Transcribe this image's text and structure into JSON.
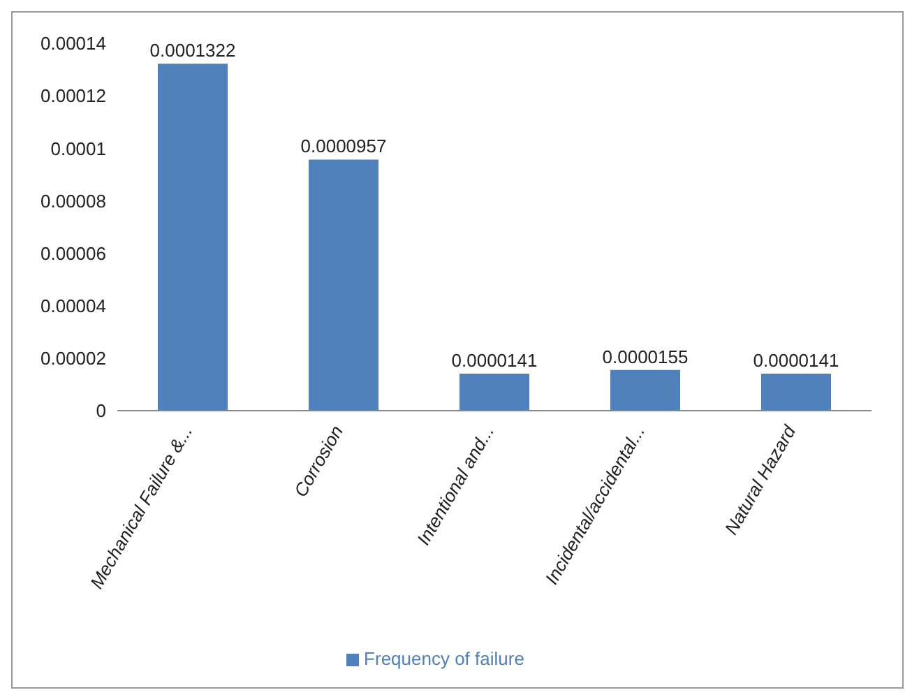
{
  "chart_data": {
    "type": "bar",
    "categories": [
      "Mechanical Failure &...",
      "Corrosion",
      "Intentional and...",
      "Incidental/accidental...",
      "Natural Hazard"
    ],
    "series": [
      {
        "name": "Frequency of failure",
        "color": "#4f81bd",
        "values": [
          0.0001322,
          9.57e-05,
          1.41e-05,
          1.55e-05,
          1.41e-05
        ],
        "value_labels": [
          "0.0001322",
          "0.0000957",
          "0.0000141",
          "0.0000155",
          "0.0000141"
        ]
      }
    ],
    "ylim": [
      0,
      0.00014
    ],
    "yticks": [
      0,
      {
        "value": 2e-05,
        "label": "0.00002"
      },
      {
        "value": 4e-05,
        "label": "0.00004"
      },
      {
        "value": 6e-05,
        "label": "0.00006"
      },
      {
        "value": 8e-05,
        "label": "0.00008"
      },
      0.0001,
      0.00012,
      0.00014
    ],
    "grid": false,
    "legend": "bottom"
  }
}
